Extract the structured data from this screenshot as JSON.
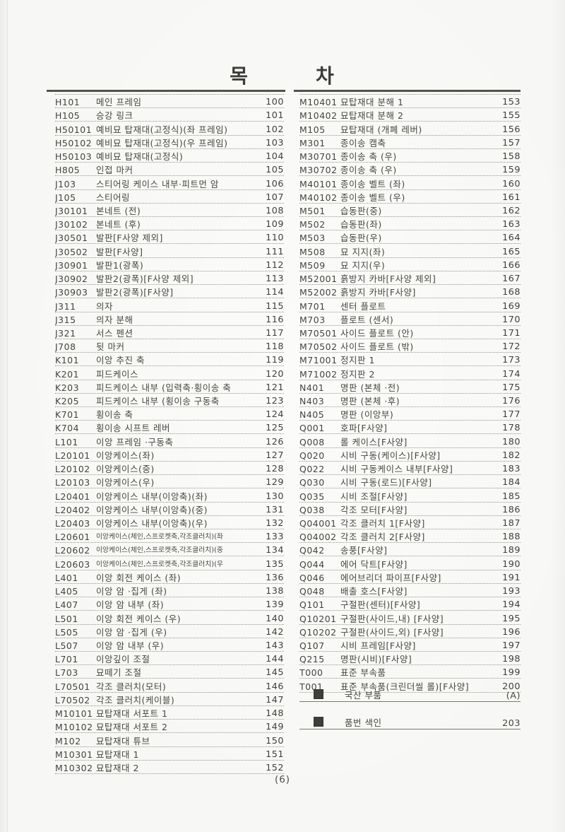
{
  "page": {
    "title": "목        차",
    "footer": "(6)"
  },
  "left_column": [
    {
      "code": "H101",
      "desc": "메인 프레임",
      "page": "100"
    },
    {
      "code": "H105",
      "desc": "승강 링크",
      "page": "101"
    },
    {
      "code": "H50101",
      "desc": "예비묘 탑재대(고정식)(좌 프레임)",
      "page": "102"
    },
    {
      "code": "H50102",
      "desc": "예비묘 탑재대(고정식)(우 프레임)",
      "page": "103"
    },
    {
      "code": "H50103",
      "desc": "예비묘 탑재대(고정식)",
      "page": "104"
    },
    {
      "code": "H805",
      "desc": "인접 마커",
      "page": "105"
    },
    {
      "code": "J103",
      "desc": "스티어링 케이스 내부·피트먼 암",
      "page": "106"
    },
    {
      "code": "J105",
      "desc": "스티어링",
      "page": "107"
    },
    {
      "code": "J30101",
      "desc": "본네트 (전)",
      "page": "108"
    },
    {
      "code": "J30102",
      "desc": "본네트 (후)",
      "page": "109"
    },
    {
      "code": "J30501",
      "desc": "발판[F사양 제외]",
      "page": "110"
    },
    {
      "code": "J30502",
      "desc": "발판[F사양]",
      "page": "111"
    },
    {
      "code": "J30901",
      "desc": "발판1(광폭)",
      "page": "112"
    },
    {
      "code": "J30902",
      "desc": "발판2(광폭)[F사양 제외]",
      "page": "113"
    },
    {
      "code": "J30903",
      "desc": "발판2(광폭)[F사양]",
      "page": "114"
    },
    {
      "code": "J311",
      "desc": "의자",
      "page": "115"
    },
    {
      "code": "J315",
      "desc": "의자 분해",
      "page": "116"
    },
    {
      "code": "J321",
      "desc": "서스 펜션",
      "page": "117"
    },
    {
      "code": "J708",
      "desc": "뒷 마커",
      "page": "118"
    },
    {
      "code": "K101",
      "desc": "이앙 추진 축",
      "page": "119"
    },
    {
      "code": "K201",
      "desc": "피드케이스",
      "page": "120"
    },
    {
      "code": "K203",
      "desc": "피드케이스 내부 (입력축·횡이송 축",
      "page": "121"
    },
    {
      "code": "K205",
      "desc": "피드케이스 내부 (횡이송 구동축",
      "page": "123"
    },
    {
      "code": "K701",
      "desc": "횡이송 축",
      "page": "124"
    },
    {
      "code": "K704",
      "desc": "횡이송 시프트 레버",
      "page": "125"
    },
    {
      "code": "L101",
      "desc": "이앙 프레임 ·구동축",
      "page": "126"
    },
    {
      "code": "L20101",
      "desc": "이앙케이스(좌)",
      "page": "127"
    },
    {
      "code": "L20102",
      "desc": "이앙케이스(중)",
      "page": "128"
    },
    {
      "code": "L20103",
      "desc": "이앙케이스(우)",
      "page": "129"
    },
    {
      "code": "L20401",
      "desc": "이앙케이스 내부(이앙축)(좌)",
      "page": "130"
    },
    {
      "code": "L20402",
      "desc": "이앙케이스 내부(이앙축)(중)",
      "page": "131"
    },
    {
      "code": "L20403",
      "desc": "이앙케이스 내부(이앙축)(우)",
      "page": "132"
    },
    {
      "code": "L20601",
      "desc": "이앙케이스(체인,스프로켓축,각조클러치)(좌",
      "page": "133",
      "small": true
    },
    {
      "code": "L20602",
      "desc": "이앙케이스(체인,스프로켓축,각조클러치)(중",
      "page": "134",
      "small": true
    },
    {
      "code": "L20603",
      "desc": "이앙케이스(체인,스프로켓축,각조클러치)(우",
      "page": "135",
      "small": true
    },
    {
      "code": "L401",
      "desc": "이앙 회전 케이스 (좌)",
      "page": "136"
    },
    {
      "code": "L405",
      "desc": "이앙 암 ·집게 (좌)",
      "page": "138"
    },
    {
      "code": "L407",
      "desc": "이앙 암 내부 (좌)",
      "page": "139"
    },
    {
      "code": "L501",
      "desc": "이앙 회전 케이스 (우)",
      "page": "140"
    },
    {
      "code": "L505",
      "desc": "이앙 암 ·집게 (우)",
      "page": "142"
    },
    {
      "code": "L507",
      "desc": "이앙 암 내부 (우)",
      "page": "143"
    },
    {
      "code": "L701",
      "desc": "이앙깊이 조절",
      "page": "144"
    },
    {
      "code": "L703",
      "desc": "묘떼기 조절",
      "page": "145"
    },
    {
      "code": "L70501",
      "desc": "각조 클러치(모터)",
      "page": "146"
    },
    {
      "code": "L70502",
      "desc": "각조 클러치(케이블)",
      "page": "147"
    },
    {
      "code": "M10101",
      "desc": "묘탑재대 서포트 1",
      "page": "148"
    },
    {
      "code": "M10102",
      "desc": "묘탑재대 서포트 2",
      "page": "149"
    },
    {
      "code": "M102",
      "desc": "묘탑재대 튜브",
      "page": "150"
    },
    {
      "code": "M10301",
      "desc": "묘탑재대 1",
      "page": "151"
    },
    {
      "code": "M10302",
      "desc": "묘탑재대 2",
      "page": "152"
    }
  ],
  "right_column": [
    {
      "code": "M10401",
      "desc": "묘탑재대 분해 1",
      "page": "153"
    },
    {
      "code": "M10402",
      "desc": "묘탑재대 분해 2",
      "page": "155"
    },
    {
      "code": "M105",
      "desc": "묘탑재대 (개폐 레버)",
      "page": "156"
    },
    {
      "code": "M301",
      "desc": "종이송 캠축",
      "page": "157"
    },
    {
      "code": "M30701",
      "desc": "종이송 축 (우)",
      "page": "158"
    },
    {
      "code": "M30702",
      "desc": "종이송 축 (우)",
      "page": "159"
    },
    {
      "code": "M40101",
      "desc": "종이송 벨트 (좌)",
      "page": "160"
    },
    {
      "code": "M40102",
      "desc": "종이송 벨트 (우)",
      "page": "161"
    },
    {
      "code": "M501",
      "desc": "습동판(중)",
      "page": "162"
    },
    {
      "code": "M502",
      "desc": "습동판(좌)",
      "page": "163"
    },
    {
      "code": "M503",
      "desc": "습동판(우)",
      "page": "164"
    },
    {
      "code": "M508",
      "desc": "묘 지지(좌)",
      "page": "165"
    },
    {
      "code": "M509",
      "desc": "묘 지지(우)",
      "page": "166"
    },
    {
      "code": "M52001",
      "desc": "흙방지 카바[F사양 제외]",
      "page": "167"
    },
    {
      "code": "M52002",
      "desc": "흙방지 카바[F사양]",
      "page": "168"
    },
    {
      "code": "M701",
      "desc": "센터 플로트",
      "page": "169"
    },
    {
      "code": "M703",
      "desc": "플로트 (센서)",
      "page": "170"
    },
    {
      "code": "M70501",
      "desc": "사이드 플로트 (안)",
      "page": "171"
    },
    {
      "code": "M70502",
      "desc": "사이드 플로트 (밖)",
      "page": "172"
    },
    {
      "code": "M71001",
      "desc": "정지판 1",
      "page": "173"
    },
    {
      "code": "M71002",
      "desc": "정지판 2",
      "page": "174"
    },
    {
      "code": "N401",
      "desc": "명판  (본체 ·전)",
      "page": "175"
    },
    {
      "code": "N403",
      "desc": "명판 (본체 ·후)",
      "page": "176"
    },
    {
      "code": "N405",
      "desc": "명판 (이앙부)",
      "page": "177"
    },
    {
      "code": "Q001",
      "desc": "호파[F사양]",
      "page": "178"
    },
    {
      "code": "Q008",
      "desc": "롤 케이스[F사양]",
      "page": "180"
    },
    {
      "code": "Q020",
      "desc": "시비 구동(케이스)[F사양]",
      "page": "182"
    },
    {
      "code": "Q022",
      "desc": "시비 구동케이스 내부[F사양]",
      "page": "183"
    },
    {
      "code": "Q030",
      "desc": "시비 구동(로드)[F사양]",
      "page": "184"
    },
    {
      "code": "Q035",
      "desc": "시비 조절[F사양]",
      "page": "185"
    },
    {
      "code": "Q038",
      "desc": "각조 모터[F사양]",
      "page": "186"
    },
    {
      "code": "Q04001",
      "desc": "각조 클러치 1[F사양]",
      "page": "187"
    },
    {
      "code": "Q04002",
      "desc": "각조 클러치 2[F사양]",
      "page": "188"
    },
    {
      "code": "Q042",
      "desc": "송풍[F사양]",
      "page": "189"
    },
    {
      "code": "Q044",
      "desc": "에어 닥트[F사양]",
      "page": "190"
    },
    {
      "code": "Q046",
      "desc": "에어브리더 파이프[F사양]",
      "page": "191"
    },
    {
      "code": "Q048",
      "desc": "배출 호스[F사양]",
      "page": "193"
    },
    {
      "code": "Q101",
      "desc": "구절판(센터)[F사양]",
      "page": "194"
    },
    {
      "code": "Q10201",
      "desc": "구절판(사이드,내) [F사양]",
      "page": "195"
    },
    {
      "code": "Q10202",
      "desc": "구절판(사이드,외) [F사양]",
      "page": "196"
    },
    {
      "code": "Q107",
      "desc": "시비 프레임[F사양]",
      "page": "197"
    },
    {
      "code": "Q215",
      "desc": "명판(시비)[F사양]",
      "page": "198"
    },
    {
      "code": "T000",
      "desc": "표준 부속품",
      "page": "199"
    },
    {
      "code": "T001",
      "desc": "표준 부속품(크린더씰 롤)[F사양]",
      "page": "200"
    }
  ],
  "extras": [
    {
      "label": "국산 부품",
      "page": "(A)"
    },
    {
      "label": "품번 색인",
      "page": "203"
    }
  ],
  "colors": {
    "ink": "#454540",
    "rule": "#55524c",
    "dotted_line": "#98958e",
    "paper": "#f6f6f4",
    "legend_square": "#3f3f3b"
  }
}
